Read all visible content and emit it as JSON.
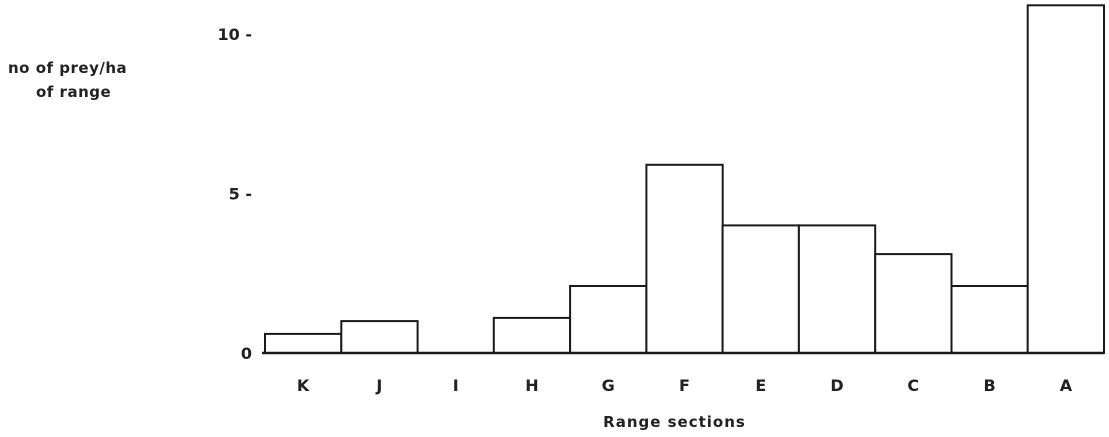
{
  "chart_data": {
    "type": "bar",
    "categories": [
      "K",
      "J",
      "I",
      "H",
      "G",
      "F",
      "E",
      "D",
      "C",
      "B",
      "A"
    ],
    "values": [
      0.6,
      1.0,
      0,
      1.1,
      2.1,
      5.9,
      4.0,
      4.0,
      3.1,
      2.1,
      10.9
    ],
    "title": "",
    "xlabel": "Range sections",
    "ylabel_lines": [
      "no of prey/ha",
      "of range"
    ],
    "ylim": [
      0,
      11.4
    ],
    "yticks": [
      0,
      5,
      10
    ],
    "ytick_labels": [
      "0",
      "5 -",
      "10 -"
    ],
    "grid": false,
    "colors": {
      "bar_fill": "#ffffff",
      "bar_stroke": "#1a1a1a",
      "axis": "#1a1a1a"
    }
  }
}
